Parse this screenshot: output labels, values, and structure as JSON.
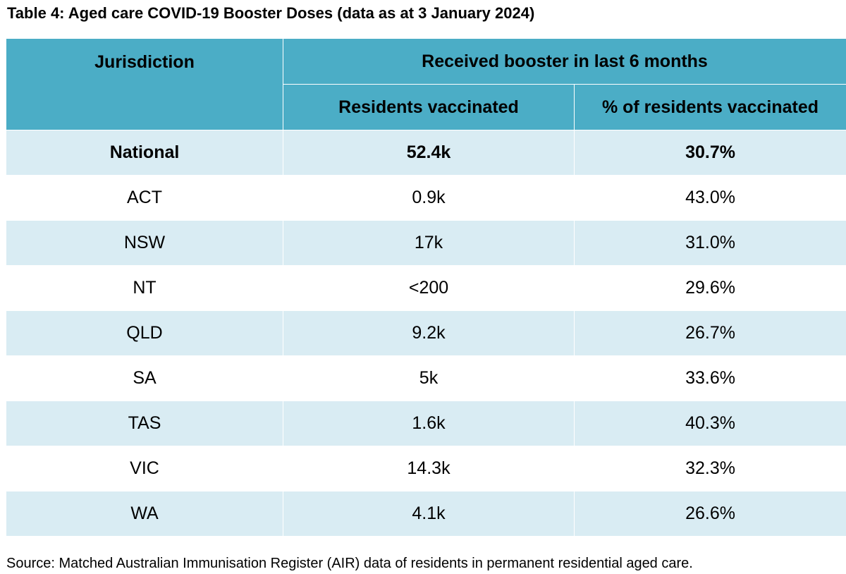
{
  "caption": "Table 4: Aged care COVID-19 Booster Doses (data as at 3 January 2024)",
  "header": {
    "jurisdiction": "Jurisdiction",
    "group": "Received booster in last 6 months",
    "residents_vaccinated": "Residents vaccinated",
    "percent_vaccinated": "% of residents vaccinated"
  },
  "rows": [
    {
      "jurisdiction": "National",
      "residents": "52.4k",
      "percent": "30.7%"
    },
    {
      "jurisdiction": "ACT",
      "residents": "0.9k",
      "percent": "43.0%"
    },
    {
      "jurisdiction": "NSW",
      "residents": "17k",
      "percent": "31.0%"
    },
    {
      "jurisdiction": "NT",
      "residents": "<200",
      "percent": "29.6%"
    },
    {
      "jurisdiction": "QLD",
      "residents": "9.2k",
      "percent": "26.7%"
    },
    {
      "jurisdiction": "SA",
      "residents": "5k",
      "percent": "33.6%"
    },
    {
      "jurisdiction": "TAS",
      "residents": "1.6k",
      "percent": "40.3%"
    },
    {
      "jurisdiction": "VIC",
      "residents": "14.3k",
      "percent": "32.3%"
    },
    {
      "jurisdiction": "WA",
      "residents": "4.1k",
      "percent": "26.6%"
    }
  ],
  "source": "Source: Matched Australian Immunisation Register (AIR) data of residents in permanent residential aged care.",
  "colors": {
    "header_bg": "#4badc6",
    "band_bg": "#d9ecf3",
    "plain_bg": "#ffffff"
  }
}
